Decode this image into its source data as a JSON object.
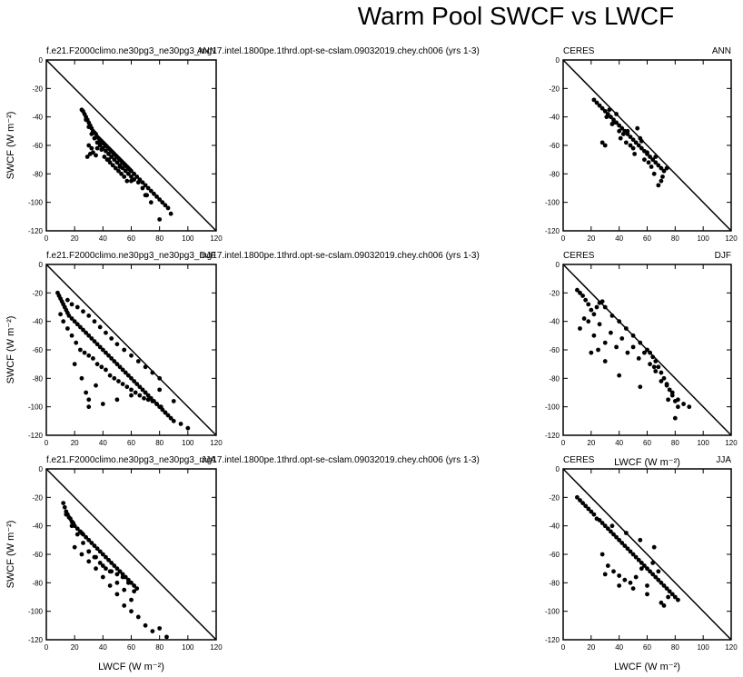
{
  "figure": {
    "title": "Warm Pool SWCF vs LWCF"
  },
  "chart_data": [
    {
      "type": "scatter",
      "panel": "model-ann",
      "label_left": "f.e21.F2000climo.ne30pg3_ne30pg3_mg17.intel.1800pe.1thrd.opt-se-cslam.09032019.chey.ch006 (yrs 1-3)",
      "label_right": "ANN",
      "xlabel": "",
      "ylabel": "SWCF (W m⁻²)",
      "xlim": [
        0,
        120
      ],
      "ylim": [
        -120,
        0
      ],
      "xticks": [
        "0",
        "20",
        "40",
        "60",
        "80",
        "100",
        "120"
      ],
      "yticks": [
        "0",
        "-20",
        "-40",
        "-60",
        "-80",
        "-100",
        "-120"
      ],
      "reference_line": "y = -x",
      "x": [
        25,
        27,
        28,
        29,
        30,
        31,
        32,
        33,
        34,
        35,
        36,
        37,
        38,
        39,
        40,
        41,
        42,
        43,
        44,
        45,
        46,
        47,
        48,
        49,
        50,
        51,
        52,
        53,
        54,
        55,
        56,
        57,
        58,
        59,
        60,
        62,
        64,
        66,
        68,
        70,
        72,
        74,
        76,
        78,
        80,
        82,
        84,
        86,
        88,
        26,
        28,
        30,
        32,
        34,
        36,
        38,
        40,
        42,
        44,
        46,
        48,
        50,
        52,
        54,
        56,
        58,
        60,
        62,
        65,
        68,
        71,
        74,
        30,
        32,
        33,
        35,
        37,
        39,
        41,
        43,
        45,
        47,
        49,
        51,
        53,
        55,
        57,
        29,
        31,
        36,
        44,
        52,
        60,
        70,
        80
      ],
      "y": [
        -35,
        -38,
        -40,
        -42,
        -44,
        -46,
        -48,
        -50,
        -51,
        -52,
        -54,
        -55,
        -56,
        -57,
        -58,
        -59,
        -60,
        -61,
        -62,
        -63,
        -64,
        -65,
        -66,
        -67,
        -68,
        -69,
        -70,
        -71,
        -72,
        -73,
        -74,
        -75,
        -76,
        -77,
        -78,
        -80,
        -82,
        -84,
        -86,
        -88,
        -90,
        -92,
        -94,
        -96,
        -98,
        -100,
        -102,
        -104,
        -108,
        -36,
        -42,
        -47,
        -52,
        -55,
        -58,
        -60,
        -62,
        -64,
        -66,
        -68,
        -70,
        -72,
        -74,
        -76,
        -78,
        -80,
        -82,
        -84,
        -86,
        -90,
        -95,
        -100,
        -60,
        -62,
        -65,
        -67,
        -58,
        -63,
        -68,
        -70,
        -72,
        -74,
        -76,
        -78,
        -80,
        -82,
        -85,
        -68,
        -66,
        -62,
        -70,
        -75,
        -85,
        -95,
        -112
      ]
    },
    {
      "type": "scatter",
      "panel": "obs-ann",
      "label_left": "CERES",
      "label_right": "ANN",
      "xlabel": "",
      "ylabel": "",
      "xlim": [
        0,
        120
      ],
      "ylim": [
        -120,
        0
      ],
      "xticks": [
        "0",
        "20",
        "40",
        "60",
        "80",
        "100",
        "120"
      ],
      "yticks": [
        "0",
        "-20",
        "-40",
        "-60",
        "-80",
        "-100",
        "-120"
      ],
      "reference_line": "y = -x",
      "x": [
        22,
        24,
        26,
        28,
        30,
        32,
        34,
        36,
        38,
        40,
        42,
        44,
        46,
        48,
        50,
        52,
        54,
        56,
        58,
        60,
        62,
        64,
        66,
        68,
        70,
        72,
        30,
        35,
        40,
        45,
        50,
        55,
        60,
        65,
        70,
        28,
        33,
        38,
        43,
        48,
        53,
        58,
        63,
        68,
        31,
        36,
        41,
        46,
        51,
        56,
        61,
        66,
        71,
        74
      ],
      "y": [
        -28,
        -30,
        -32,
        -34,
        -36,
        -38,
        -40,
        -42,
        -44,
        -46,
        -48,
        -50,
        -52,
        -54,
        -56,
        -58,
        -60,
        -62,
        -64,
        -66,
        -68,
        -70,
        -72,
        -74,
        -76,
        -78,
        -60,
        -45,
        -50,
        -58,
        -62,
        -55,
        -65,
        -80,
        -85,
        -58,
        -35,
        -38,
        -52,
        -60,
        -48,
        -70,
        -75,
        -88,
        -40,
        -44,
        -55,
        -50,
        -66,
        -57,
        -72,
        -68,
        -82,
        -76
      ]
    },
    {
      "type": "scatter",
      "panel": "model-djf",
      "label_left": "f.e21.F2000climo.ne30pg3_ne30pg3_mg17.intel.1800pe.1thrd.opt-se-cslam.09032019.chey.ch006 (yrs 1-3)",
      "label_right": "DJF",
      "xlabel": "",
      "ylabel": "SWCF (W m⁻²)",
      "xlim": [
        0,
        120
      ],
      "ylim": [
        -120,
        0
      ],
      "xticks": [
        "0",
        "20",
        "40",
        "60",
        "80",
        "100",
        "120"
      ],
      "yticks": [
        "0",
        "-20",
        "-40",
        "-60",
        "-80",
        "-100",
        "-120"
      ],
      "reference_line": "y = -x",
      "x": [
        8,
        9,
        10,
        11,
        12,
        13,
        14,
        15,
        16,
        18,
        20,
        22,
        24,
        26,
        28,
        30,
        32,
        34,
        36,
        38,
        40,
        42,
        44,
        46,
        48,
        50,
        52,
        54,
        56,
        58,
        60,
        62,
        64,
        66,
        68,
        70,
        72,
        74,
        76,
        78,
        80,
        82,
        84,
        86,
        88,
        90,
        95,
        100,
        10,
        12,
        15,
        18,
        21,
        24,
        27,
        30,
        33,
        36,
        39,
        42,
        45,
        48,
        51,
        54,
        57,
        60,
        63,
        66,
        69,
        72,
        75,
        78,
        81,
        84,
        20,
        25,
        28,
        30,
        35,
        15,
        18,
        22,
        26,
        30,
        34,
        38,
        42,
        46,
        50,
        55,
        60,
        65,
        70,
        75,
        80,
        30,
        40,
        50,
        60,
        70,
        80,
        90
      ],
      "y": [
        -20,
        -22,
        -24,
        -26,
        -28,
        -30,
        -32,
        -34,
        -36,
        -38,
        -40,
        -42,
        -44,
        -46,
        -48,
        -50,
        -52,
        -54,
        -56,
        -58,
        -60,
        -62,
        -64,
        -66,
        -68,
        -70,
        -72,
        -74,
        -76,
        -78,
        -80,
        -82,
        -84,
        -86,
        -88,
        -90,
        -92,
        -94,
        -96,
        -98,
        -100,
        -102,
        -104,
        -106,
        -108,
        -110,
        -112,
        -115,
        -35,
        -40,
        -45,
        -50,
        -55,
        -60,
        -62,
        -64,
        -66,
        -70,
        -72,
        -74,
        -78,
        -80,
        -82,
        -84,
        -86,
        -88,
        -90,
        -92,
        -94,
        -95,
        -96,
        -98,
        -100,
        -104,
        -70,
        -80,
        -90,
        -95,
        -85,
        -25,
        -28,
        -30,
        -33,
        -36,
        -40,
        -44,
        -48,
        -52,
        -56,
        -60,
        -64,
        -68,
        -72,
        -76,
        -80,
        -100,
        -98,
        -95,
        -92,
        -90,
        -88,
        -96
      ]
    },
    {
      "type": "scatter",
      "panel": "obs-djf",
      "label_left": "CERES",
      "label_right": "DJF",
      "xlabel": "LWCF (W m⁻²)",
      "ylabel": "",
      "xlim": [
        0,
        120
      ],
      "ylim": [
        -120,
        0
      ],
      "xticks": [
        "0",
        "20",
        "40",
        "60",
        "80",
        "100",
        "120"
      ],
      "yticks": [
        "0",
        "-20",
        "-40",
        "-60",
        "-80",
        "-100",
        "-120"
      ],
      "reference_line": "y = -x",
      "x": [
        10,
        12,
        14,
        16,
        18,
        20,
        22,
        24,
        26,
        28,
        30,
        35,
        40,
        45,
        50,
        55,
        60,
        62,
        64,
        66,
        68,
        70,
        72,
        74,
        76,
        78,
        80,
        82,
        12,
        15,
        18,
        22,
        26,
        30,
        34,
        38,
        42,
        46,
        50,
        54,
        58,
        62,
        66,
        70,
        74,
        78,
        82,
        86,
        90,
        20,
        25,
        30,
        40,
        55,
        65,
        75,
        80
      ],
      "y": [
        -18,
        -20,
        -22,
        -25,
        -28,
        -32,
        -35,
        -30,
        -27,
        -26,
        -30,
        -36,
        -40,
        -45,
        -50,
        -55,
        -60,
        -62,
        -65,
        -68,
        -72,
        -76,
        -80,
        -84,
        -88,
        -92,
        -96,
        -100,
        -45,
        -38,
        -40,
        -50,
        -42,
        -55,
        -48,
        -58,
        -52,
        -62,
        -58,
        -66,
        -62,
        -70,
        -75,
        -82,
        -85,
        -90,
        -95,
        -98,
        -100,
        -62,
        -60,
        -68,
        -78,
        -86,
        -72,
        -95,
        -108
      ]
    },
    {
      "type": "scatter",
      "panel": "model-jja",
      "label_left": "f.e21.F2000climo.ne30pg3_ne30pg3_mg17.intel.1800pe.1thrd.opt-se-cslam.09032019.chey.ch006 (yrs 1-3)",
      "label_right": "JJA",
      "xlabel": "LWCF (W m⁻²)",
      "ylabel": "SWCF (W m⁻²)",
      "xlim": [
        0,
        120
      ],
      "ylim": [
        -120,
        0
      ],
      "xticks": [
        "0",
        "20",
        "40",
        "60",
        "80",
        "100",
        "120"
      ],
      "yticks": [
        "0",
        "-20",
        "-40",
        "-60",
        "-80",
        "-100",
        "-120"
      ],
      "reference_line": "y = -x",
      "x": [
        12,
        13,
        14,
        15,
        16,
        17,
        18,
        19,
        20,
        22,
        24,
        26,
        28,
        30,
        32,
        34,
        36,
        38,
        40,
        42,
        44,
        46,
        48,
        50,
        52,
        54,
        56,
        58,
        60,
        62,
        64,
        14,
        18,
        22,
        26,
        30,
        34,
        38,
        42,
        46,
        50,
        54,
        58,
        62,
        20,
        25,
        30,
        35,
        40,
        45,
        50,
        55,
        60,
        25,
        30,
        35,
        40,
        45,
        50,
        55,
        60,
        65,
        70,
        75,
        80,
        85
      ],
      "y": [
        -24,
        -27,
        -30,
        -32,
        -34,
        -35,
        -37,
        -38,
        -40,
        -42,
        -44,
        -46,
        -48,
        -50,
        -52,
        -54,
        -56,
        -58,
        -60,
        -62,
        -64,
        -66,
        -68,
        -70,
        -72,
        -74,
        -76,
        -78,
        -80,
        -82,
        -84,
        -32,
        -40,
        -46,
        -52,
        -58,
        -62,
        -66,
        -70,
        -72,
        -74,
        -76,
        -80,
        -86,
        -55,
        -60,
        -65,
        -70,
        -76,
        -82,
        -88,
        -96,
        -100,
        -45,
        -58,
        -62,
        -68,
        -72,
        -80,
        -85,
        -92,
        -104,
        -110,
        -114,
        -112,
        -118
      ]
    },
    {
      "type": "scatter",
      "panel": "obs-jja",
      "label_left": "CERES",
      "label_right": "JJA",
      "xlabel": "LWCF (W m⁻²)",
      "ylabel": "",
      "xlim": [
        0,
        120
      ],
      "ylim": [
        -120,
        0
      ],
      "xticks": [
        "0",
        "20",
        "40",
        "60",
        "80",
        "100",
        "120"
      ],
      "yticks": [
        "0",
        "-20",
        "-40",
        "-60",
        "-80",
        "-100",
        "-120"
      ],
      "reference_line": "y = -x",
      "x": [
        10,
        12,
        14,
        16,
        18,
        20,
        22,
        24,
        26,
        28,
        30,
        32,
        34,
        36,
        38,
        40,
        42,
        44,
        46,
        48,
        50,
        52,
        54,
        56,
        58,
        60,
        62,
        64,
        66,
        68,
        70,
        72,
        74,
        76,
        78,
        80,
        82,
        28,
        32,
        36,
        40,
        44,
        48,
        52,
        56,
        60,
        64,
        68,
        72,
        35,
        45,
        55,
        65,
        75,
        30,
        40,
        50,
        60,
        70
      ],
      "y": [
        -20,
        -22,
        -24,
        -26,
        -28,
        -30,
        -32,
        -35,
        -36,
        -38,
        -40,
        -42,
        -44,
        -46,
        -48,
        -50,
        -52,
        -54,
        -56,
        -58,
        -60,
        -62,
        -64,
        -66,
        -68,
        -70,
        -72,
        -74,
        -76,
        -78,
        -80,
        -82,
        -84,
        -86,
        -88,
        -90,
        -92,
        -60,
        -68,
        -72,
        -75,
        -78,
        -80,
        -76,
        -70,
        -82,
        -66,
        -72,
        -96,
        -40,
        -45,
        -50,
        -55,
        -90,
        -74,
        -82,
        -84,
        -88,
        -94
      ]
    }
  ]
}
